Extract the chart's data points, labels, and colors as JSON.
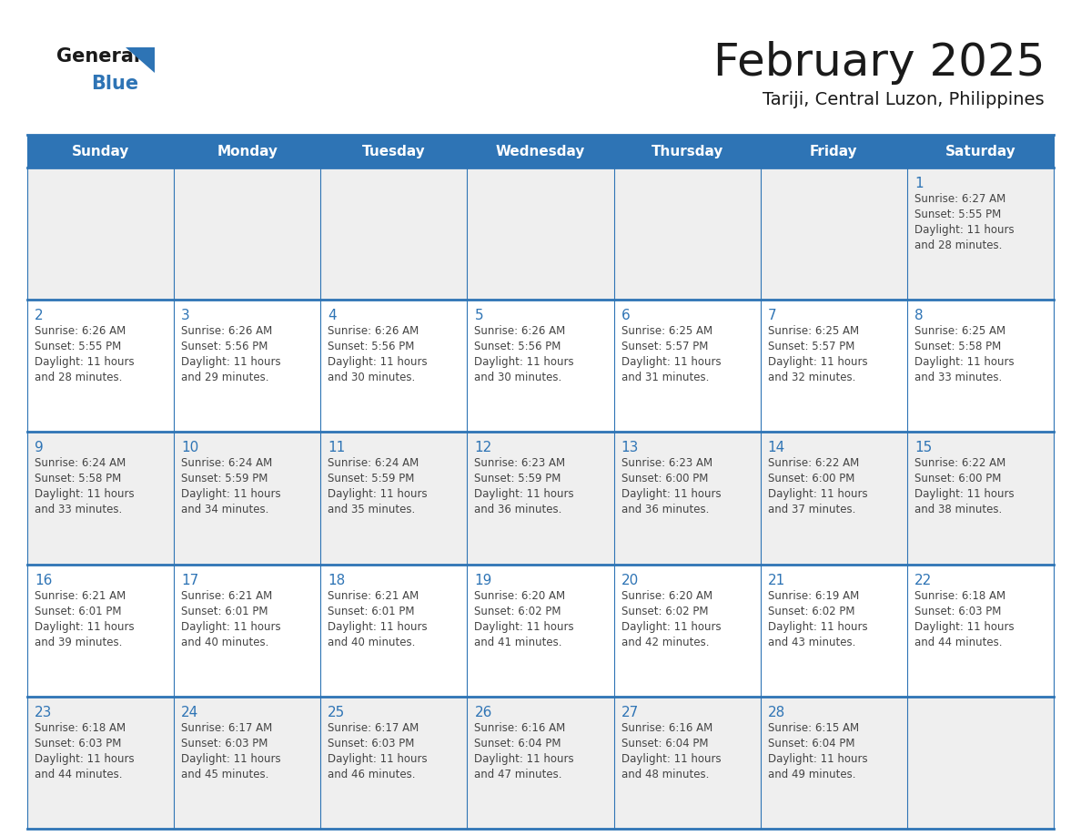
{
  "title": "February 2025",
  "subtitle": "Tariji, Central Luzon, Philippines",
  "header_bg": "#2E74B5",
  "header_text_color": "#FFFFFF",
  "day_number_color": "#2E74B5",
  "text_color": "#333333",
  "line_color": "#2E74B5",
  "days_of_week": [
    "Sunday",
    "Monday",
    "Tuesday",
    "Wednesday",
    "Thursday",
    "Friday",
    "Saturday"
  ],
  "calendar_data": [
    [
      {
        "day": null,
        "sunrise": null,
        "sunset": null,
        "daylight_line1": null,
        "daylight_line2": null
      },
      {
        "day": null,
        "sunrise": null,
        "sunset": null,
        "daylight_line1": null,
        "daylight_line2": null
      },
      {
        "day": null,
        "sunrise": null,
        "sunset": null,
        "daylight_line1": null,
        "daylight_line2": null
      },
      {
        "day": null,
        "sunrise": null,
        "sunset": null,
        "daylight_line1": null,
        "daylight_line2": null
      },
      {
        "day": null,
        "sunrise": null,
        "sunset": null,
        "daylight_line1": null,
        "daylight_line2": null
      },
      {
        "day": null,
        "sunrise": null,
        "sunset": null,
        "daylight_line1": null,
        "daylight_line2": null
      },
      {
        "day": 1,
        "sunrise": "6:27 AM",
        "sunset": "5:55 PM",
        "daylight_line1": "Daylight: 11 hours",
        "daylight_line2": "and 28 minutes."
      }
    ],
    [
      {
        "day": 2,
        "sunrise": "6:26 AM",
        "sunset": "5:55 PM",
        "daylight_line1": "Daylight: 11 hours",
        "daylight_line2": "and 28 minutes."
      },
      {
        "day": 3,
        "sunrise": "6:26 AM",
        "sunset": "5:56 PM",
        "daylight_line1": "Daylight: 11 hours",
        "daylight_line2": "and 29 minutes."
      },
      {
        "day": 4,
        "sunrise": "6:26 AM",
        "sunset": "5:56 PM",
        "daylight_line1": "Daylight: 11 hours",
        "daylight_line2": "and 30 minutes."
      },
      {
        "day": 5,
        "sunrise": "6:26 AM",
        "sunset": "5:56 PM",
        "daylight_line1": "Daylight: 11 hours",
        "daylight_line2": "and 30 minutes."
      },
      {
        "day": 6,
        "sunrise": "6:25 AM",
        "sunset": "5:57 PM",
        "daylight_line1": "Daylight: 11 hours",
        "daylight_line2": "and 31 minutes."
      },
      {
        "day": 7,
        "sunrise": "6:25 AM",
        "sunset": "5:57 PM",
        "daylight_line1": "Daylight: 11 hours",
        "daylight_line2": "and 32 minutes."
      },
      {
        "day": 8,
        "sunrise": "6:25 AM",
        "sunset": "5:58 PM",
        "daylight_line1": "Daylight: 11 hours",
        "daylight_line2": "and 33 minutes."
      }
    ],
    [
      {
        "day": 9,
        "sunrise": "6:24 AM",
        "sunset": "5:58 PM",
        "daylight_line1": "Daylight: 11 hours",
        "daylight_line2": "and 33 minutes."
      },
      {
        "day": 10,
        "sunrise": "6:24 AM",
        "sunset": "5:59 PM",
        "daylight_line1": "Daylight: 11 hours",
        "daylight_line2": "and 34 minutes."
      },
      {
        "day": 11,
        "sunrise": "6:24 AM",
        "sunset": "5:59 PM",
        "daylight_line1": "Daylight: 11 hours",
        "daylight_line2": "and 35 minutes."
      },
      {
        "day": 12,
        "sunrise": "6:23 AM",
        "sunset": "5:59 PM",
        "daylight_line1": "Daylight: 11 hours",
        "daylight_line2": "and 36 minutes."
      },
      {
        "day": 13,
        "sunrise": "6:23 AM",
        "sunset": "6:00 PM",
        "daylight_line1": "Daylight: 11 hours",
        "daylight_line2": "and 36 minutes."
      },
      {
        "day": 14,
        "sunrise": "6:22 AM",
        "sunset": "6:00 PM",
        "daylight_line1": "Daylight: 11 hours",
        "daylight_line2": "and 37 minutes."
      },
      {
        "day": 15,
        "sunrise": "6:22 AM",
        "sunset": "6:00 PM",
        "daylight_line1": "Daylight: 11 hours",
        "daylight_line2": "and 38 minutes."
      }
    ],
    [
      {
        "day": 16,
        "sunrise": "6:21 AM",
        "sunset": "6:01 PM",
        "daylight_line1": "Daylight: 11 hours",
        "daylight_line2": "and 39 minutes."
      },
      {
        "day": 17,
        "sunrise": "6:21 AM",
        "sunset": "6:01 PM",
        "daylight_line1": "Daylight: 11 hours",
        "daylight_line2": "and 40 minutes."
      },
      {
        "day": 18,
        "sunrise": "6:21 AM",
        "sunset": "6:01 PM",
        "daylight_line1": "Daylight: 11 hours",
        "daylight_line2": "and 40 minutes."
      },
      {
        "day": 19,
        "sunrise": "6:20 AM",
        "sunset": "6:02 PM",
        "daylight_line1": "Daylight: 11 hours",
        "daylight_line2": "and 41 minutes."
      },
      {
        "day": 20,
        "sunrise": "6:20 AM",
        "sunset": "6:02 PM",
        "daylight_line1": "Daylight: 11 hours",
        "daylight_line2": "and 42 minutes."
      },
      {
        "day": 21,
        "sunrise": "6:19 AM",
        "sunset": "6:02 PM",
        "daylight_line1": "Daylight: 11 hours",
        "daylight_line2": "and 43 minutes."
      },
      {
        "day": 22,
        "sunrise": "6:18 AM",
        "sunset": "6:03 PM",
        "daylight_line1": "Daylight: 11 hours",
        "daylight_line2": "and 44 minutes."
      }
    ],
    [
      {
        "day": 23,
        "sunrise": "6:18 AM",
        "sunset": "6:03 PM",
        "daylight_line1": "Daylight: 11 hours",
        "daylight_line2": "and 44 minutes."
      },
      {
        "day": 24,
        "sunrise": "6:17 AM",
        "sunset": "6:03 PM",
        "daylight_line1": "Daylight: 11 hours",
        "daylight_line2": "and 45 minutes."
      },
      {
        "day": 25,
        "sunrise": "6:17 AM",
        "sunset": "6:03 PM",
        "daylight_line1": "Daylight: 11 hours",
        "daylight_line2": "and 46 minutes."
      },
      {
        "day": 26,
        "sunrise": "6:16 AM",
        "sunset": "6:04 PM",
        "daylight_line1": "Daylight: 11 hours",
        "daylight_line2": "and 47 minutes."
      },
      {
        "day": 27,
        "sunrise": "6:16 AM",
        "sunset": "6:04 PM",
        "daylight_line1": "Daylight: 11 hours",
        "daylight_line2": "and 48 minutes."
      },
      {
        "day": 28,
        "sunrise": "6:15 AM",
        "sunset": "6:04 PM",
        "daylight_line1": "Daylight: 11 hours",
        "daylight_line2": "and 49 minutes."
      },
      {
        "day": null,
        "sunrise": null,
        "sunset": null,
        "daylight_line1": null,
        "daylight_line2": null
      }
    ]
  ]
}
